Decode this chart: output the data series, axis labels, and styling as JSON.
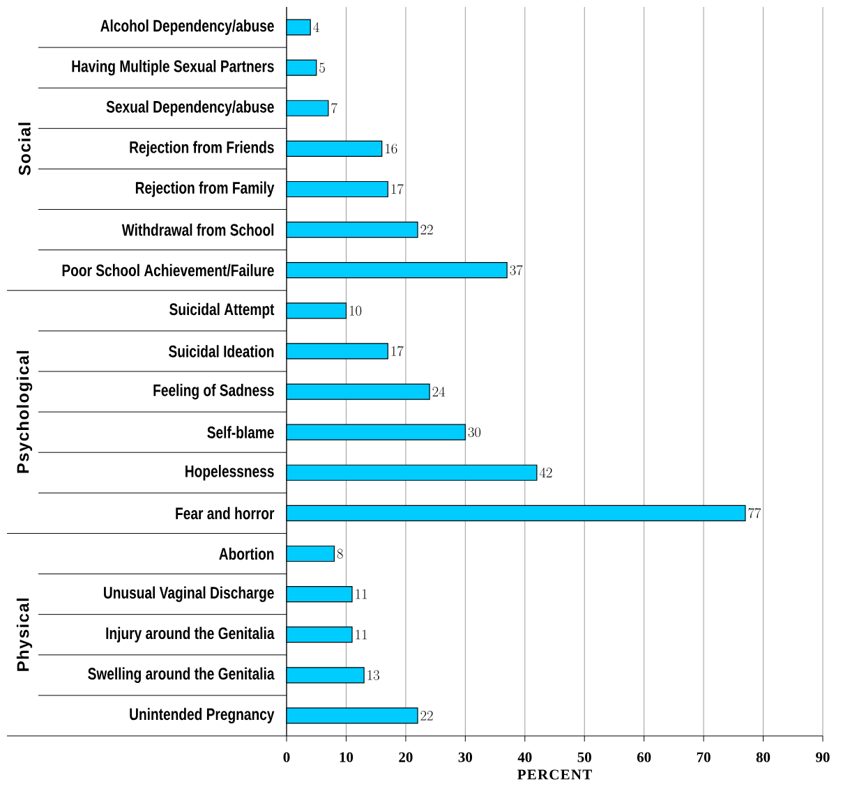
{
  "chart_data": {
    "type": "bar",
    "orientation": "horizontal",
    "xlabel": "PERCENT",
    "categories": [
      "Alcohol Dependency/abuse",
      "Having Multiple Sexual Partners",
      "Sexual Dependency/abuse",
      "Rejection from Friends",
      "Rejection from Family",
      "Withdrawal from School",
      "Poor School Achievement/Failure",
      "Suicidal Attempt",
      "Suicidal Ideation",
      "Feeling of Sadness",
      "Self-blame",
      "Hopelessness",
      "Fear and horror",
      "Abortion",
      "Unusual Vaginal Discharge",
      "Injury around the Genitalia",
      "Swelling around the Genitalia",
      "Unintended Pregnancy"
    ],
    "values": [
      4,
      5,
      7,
      16,
      17,
      22,
      37,
      10,
      17,
      24,
      30,
      42,
      77,
      8,
      11,
      11,
      13,
      22
    ],
    "color": "#00ccff",
    "data_labels": true,
    "grid": "x",
    "xlim": [
      0,
      90
    ],
    "xticks": [
      0,
      10,
      20,
      30,
      40,
      50,
      60,
      70,
      80,
      90
    ],
    "annotations": [
      "Social",
      "Psychological",
      "Physical"
    ]
  }
}
